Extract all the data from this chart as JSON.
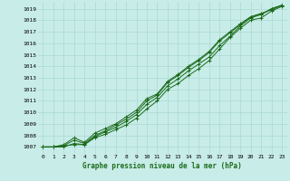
{
  "title": "Graphe pression niveau de la mer (hPa)",
  "bg_color": "#c8ece8",
  "grid_color": "#aad8d3",
  "line_color": "#1a6b1a",
  "x_ticks": [
    0,
    1,
    2,
    3,
    4,
    5,
    6,
    7,
    8,
    9,
    10,
    11,
    12,
    13,
    14,
    15,
    16,
    17,
    18,
    19,
    20,
    21,
    22,
    23
  ],
  "y_ticks": [
    1007,
    1008,
    1009,
    1010,
    1011,
    1012,
    1013,
    1014,
    1015,
    1016,
    1017,
    1018,
    1019
  ],
  "ylim": [
    1006.4,
    1019.6
  ],
  "xlim": [
    -0.5,
    23.5
  ],
  "series": [
    [
      1007.0,
      1007.0,
      1007.1,
      1007.2,
      1007.2,
      1007.8,
      1008.1,
      1008.5,
      1008.9,
      1009.5,
      1010.3,
      1011.0,
      1012.0,
      1012.5,
      1013.2,
      1013.8,
      1014.5,
      1015.5,
      1016.5,
      1017.3,
      1018.0,
      1018.2,
      1018.8,
      1019.2
    ],
    [
      1007.0,
      1007.0,
      1007.0,
      1007.3,
      1007.2,
      1007.9,
      1008.3,
      1008.7,
      1009.2,
      1009.8,
      1010.7,
      1011.3,
      1012.3,
      1012.9,
      1013.6,
      1014.2,
      1014.8,
      1015.8,
      1016.6,
      1017.5,
      1018.2,
      1018.5,
      1019.0,
      1019.3
    ],
    [
      1007.0,
      1007.0,
      1007.1,
      1007.6,
      1007.3,
      1008.0,
      1008.4,
      1008.9,
      1009.4,
      1010.0,
      1011.0,
      1011.5,
      1012.6,
      1013.2,
      1013.9,
      1014.5,
      1015.2,
      1016.2,
      1016.9,
      1017.6,
      1018.3,
      1018.6,
      1018.9,
      1019.3
    ],
    [
      1007.0,
      1007.0,
      1007.2,
      1007.8,
      1007.4,
      1008.2,
      1008.6,
      1009.0,
      1009.6,
      1010.2,
      1011.2,
      1011.6,
      1012.7,
      1013.3,
      1014.0,
      1014.6,
      1015.3,
      1016.3,
      1017.0,
      1017.7,
      1018.3,
      1018.5,
      1019.0,
      1019.3
    ]
  ]
}
